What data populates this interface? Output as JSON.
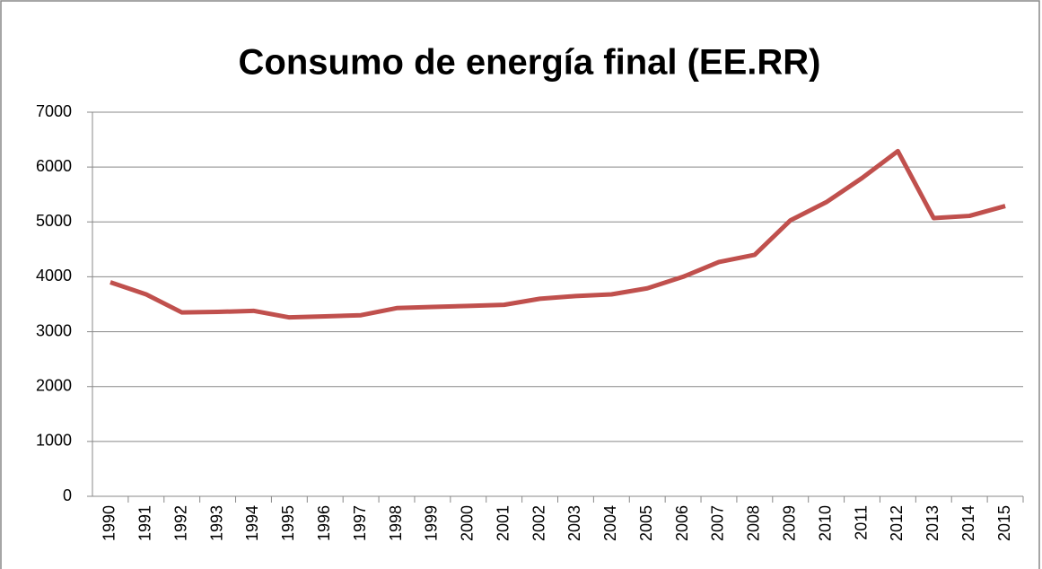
{
  "chart_data": {
    "type": "line",
    "title": "Consumo de energía final (EE.RR)",
    "categories": [
      "1990",
      "1991",
      "1992",
      "1993",
      "1994",
      "1995",
      "1996",
      "1997",
      "1998",
      "1999",
      "2000",
      "2001",
      "2002",
      "2003",
      "2004",
      "2005",
      "2006",
      "2007",
      "2008",
      "2009",
      "2010",
      "2011",
      "2012",
      "2013",
      "2014",
      "2015"
    ],
    "series": [
      {
        "name": "Consumo de energía final",
        "color": "#c0504d",
        "values": [
          3900,
          3680,
          3350,
          3360,
          3380,
          3260,
          3280,
          3300,
          3430,
          3450,
          3470,
          3490,
          3600,
          3650,
          3680,
          3790,
          4000,
          4270,
          4400,
          5030,
          5360,
          5800,
          6290,
          5070,
          5110,
          5290
        ]
      }
    ],
    "ylim": [
      0,
      7000
    ],
    "yticks": [
      0,
      1000,
      2000,
      3000,
      4000,
      5000,
      6000,
      7000
    ],
    "grid": true
  }
}
